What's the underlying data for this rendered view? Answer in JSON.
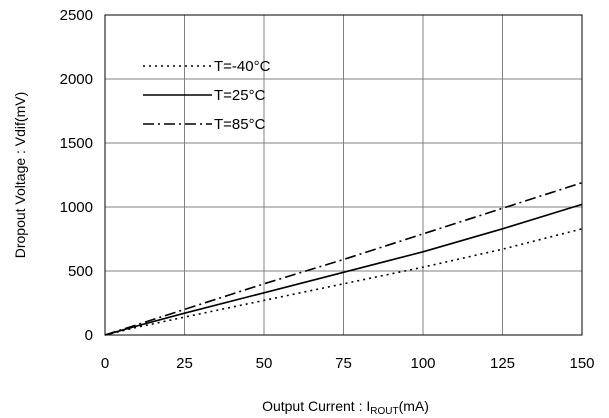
{
  "chart_data": {
    "type": "line",
    "title": "",
    "xlabel": "Output Current : I",
    "xlabel_sub": "ROUT",
    "xlabel_unit": "(mA)",
    "ylabel": "Dropout Voltage : Vdif(mV)",
    "xlim": [
      0,
      150
    ],
    "ylim": [
      0,
      2500
    ],
    "x_ticks": [
      0,
      25,
      50,
      75,
      100,
      125,
      150
    ],
    "y_ticks": [
      0,
      500,
      1000,
      1500,
      2000,
      2500
    ],
    "x_tick_labels": [
      "0",
      "25",
      "50",
      "75",
      "100",
      "125",
      "150"
    ],
    "y_tick_labels": [
      "0",
      "500",
      "1000",
      "1500",
      "2000",
      "2500"
    ],
    "grid": true,
    "legend_position": "top-left",
    "series": [
      {
        "name": "T=-40°C",
        "style": "dotted",
        "color": "#000000",
        "x": [
          0,
          10,
          25,
          50,
          75,
          100,
          125,
          150
        ],
        "y": [
          0,
          60,
          140,
          270,
          400,
          530,
          670,
          830
        ]
      },
      {
        "name": "T=25°C",
        "style": "solid",
        "color": "#000000",
        "x": [
          0,
          10,
          25,
          50,
          75,
          100,
          125,
          150
        ],
        "y": [
          0,
          70,
          170,
          330,
          490,
          650,
          830,
          1020
        ]
      },
      {
        "name": "T=85°C",
        "style": "dashdot",
        "color": "#000000",
        "x": [
          0,
          10,
          25,
          50,
          75,
          100,
          125,
          150
        ],
        "y": [
          0,
          80,
          200,
          400,
          590,
          790,
          990,
          1190
        ]
      }
    ]
  }
}
